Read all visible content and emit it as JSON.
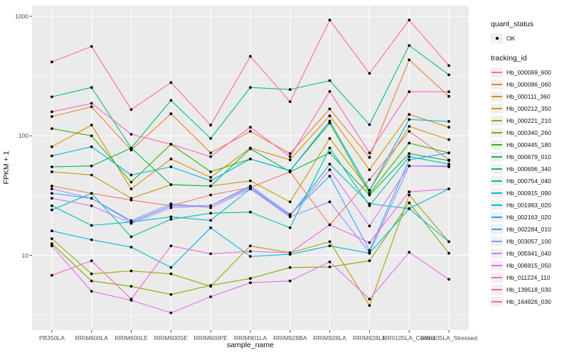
{
  "figure": {
    "background": "#FFFFFF",
    "panel_background": "#EBEBEB",
    "grid_color": "#FFFFFF",
    "tick_color": "#333333",
    "tick_label_color": "#4D4D4D",
    "axis_title_color": "#111111",
    "point_color": "#000000"
  },
  "legend": {
    "quant_status_title": "quant_status",
    "quant_status_items": [
      {
        "label": "OK",
        "icon": "point-icon"
      }
    ],
    "tracking_id_title": "tracking_id"
  },
  "chart_data": {
    "type": "line",
    "title": "",
    "xlabel": "sample_name",
    "ylabel": "FPKM + 1",
    "y_scale": "log10",
    "grid": true,
    "legend_position": "right",
    "y_ticks": [
      10,
      100,
      1000
    ],
    "y_minor_ticks": [
      3.162,
      31.62,
      316.2
    ],
    "ylim": [
      2.3,
      1225
    ],
    "categories": [
      "PB350LA",
      "RRIM600LA",
      "RRIM600LE",
      "RRIM600SE",
      "RRIM600PE",
      "RRIM901LA",
      "RRIM928BA",
      "RRIM928LA",
      "RRIM928LE",
      "RRII105LA_Control",
      "RRII105LA_Stressed"
    ],
    "series": [
      {
        "name": "Hb_000069_600",
        "color": "#F8766D",
        "values": [
          38,
          33,
          29,
          26,
          32,
          37,
          50,
          18,
          43,
          109,
          63
        ]
      },
      {
        "name": "Hb_000086_060",
        "color": "#EA8331",
        "values": [
          145,
          175,
          76,
          153,
          72,
          109,
          71,
          168,
          66,
          432,
          214
        ]
      },
      {
        "name": "Hb_000111_360",
        "color": "#D89000",
        "values": [
          81,
          123,
          36,
          64,
          45,
          79,
          63,
          147,
          52,
          151,
          118
        ]
      },
      {
        "name": "Hb_000212_350",
        "color": "#C09B00",
        "values": [
          50,
          47,
          30,
          39,
          38,
          42,
          28,
          95,
          35,
          120,
          93
        ]
      },
      {
        "name": "Hb_000221_210",
        "color": "#A3A500",
        "values": [
          13.8,
          7,
          7.4,
          7,
          5.5,
          12,
          10.5,
          13,
          3.8,
          32,
          13
        ]
      },
      {
        "name": "Hb_000340_260",
        "color": "#7CAE00",
        "values": [
          12.5,
          6.1,
          5.5,
          4.7,
          5.6,
          6.4,
          7.9,
          8,
          9,
          27.5,
          10.4
        ]
      },
      {
        "name": "Hb_000445_180",
        "color": "#39B600",
        "values": [
          115,
          100,
          41,
          85,
          50,
          64,
          51,
          128,
          33,
          87,
          72
        ]
      },
      {
        "name": "Hb_000679_010",
        "color": "#00BB4E",
        "values": [
          55,
          56,
          79,
          39,
          38,
          78,
          50,
          72,
          32,
          71,
          62
        ]
      },
      {
        "name": "Hb_000696_340",
        "color": "#00BF7D",
        "values": [
          212,
          254,
          79,
          198,
          95,
          254,
          244,
          290,
          124,
          570,
          324
        ]
      },
      {
        "name": "Hb_000754_040",
        "color": "#00C1A3",
        "values": [
          24,
          33,
          14.3,
          20,
          22.5,
          23,
          17,
          79,
          26,
          67,
          58
        ]
      },
      {
        "name": "Hb_000915_090",
        "color": "#00BFC4",
        "values": [
          26,
          17.8,
          19,
          21,
          19.6,
          36,
          21.4,
          58,
          27,
          24.6,
          36
        ]
      },
      {
        "name": "Hb_001983_020",
        "color": "#00BAE0",
        "values": [
          16,
          13.5,
          11.7,
          7.9,
          17,
          9.8,
          10.2,
          12,
          10.4,
          24.6,
          13
        ]
      },
      {
        "name": "Hb_002163_020",
        "color": "#00B0F6",
        "values": [
          68,
          81,
          47,
          55,
          42,
          64,
          51,
          133,
          35,
          137,
          132
        ]
      },
      {
        "name": "Hb_002284_010",
        "color": "#35A2FF",
        "values": [
          33,
          30,
          19,
          26,
          26,
          38,
          22,
          46,
          11,
          63,
          72
        ]
      },
      {
        "name": "Hb_003057_100",
        "color": "#9590FF",
        "values": [
          36,
          30,
          19.5,
          27,
          25,
          36,
          21,
          28,
          10.5,
          56,
          56
        ]
      },
      {
        "name": "Hb_005941_040",
        "color": "#C77CFF",
        "values": [
          30,
          26,
          18.5,
          25,
          26,
          37,
          21.4,
          52,
          17.6,
          56,
          55
        ]
      },
      {
        "name": "Hb_006915_050",
        "color": "#E76BF3",
        "values": [
          12,
          5,
          4.2,
          3.3,
          4.5,
          5.9,
          6.1,
          8.8,
          4.3,
          10.6,
          6.3
        ]
      },
      {
        "name": "Hb_011224_110",
        "color": "#FA62DB",
        "values": [
          6.8,
          9,
          4.3,
          12,
          10.3,
          10.8,
          10.5,
          18,
          12.8,
          34,
          36
        ]
      },
      {
        "name": "Hb_139518_030",
        "color": "#FF62BC",
        "values": [
          159,
          187,
          103,
          85,
          67,
          118,
          67,
          235,
          72,
          234,
          234
        ]
      },
      {
        "name": "Hb_164926_030",
        "color": "#FF6A98",
        "values": [
          415,
          560,
          166,
          279,
          123,
          462,
          193,
          930,
          333,
          930,
          387
        ]
      }
    ]
  }
}
